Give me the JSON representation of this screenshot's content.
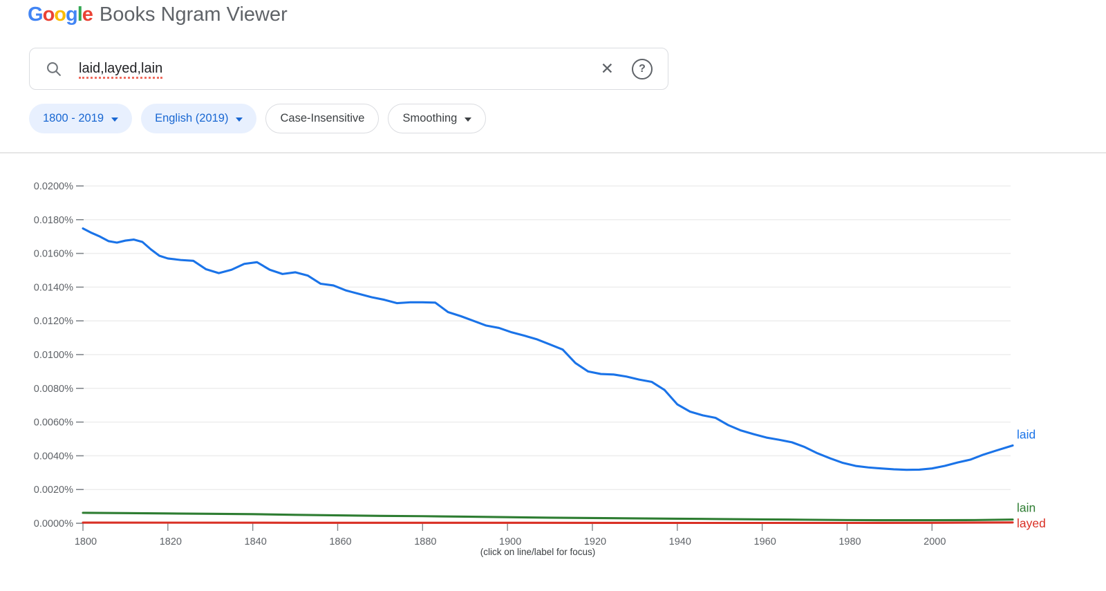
{
  "header": {
    "logo_word": [
      {
        "ch": "G",
        "color": "#4285F4"
      },
      {
        "ch": "o",
        "color": "#EA4335"
      },
      {
        "ch": "o",
        "color": "#FBBC05"
      },
      {
        "ch": "g",
        "color": "#4285F4"
      },
      {
        "ch": "l",
        "color": "#34A853"
      },
      {
        "ch": "e",
        "color": "#EA4335"
      }
    ],
    "title": "Books Ngram Viewer"
  },
  "search": {
    "query": "laid,layed,lain",
    "clear_glyph": "✕",
    "help_glyph": "?"
  },
  "filters": {
    "year_range": {
      "label": "1800 - 2019"
    },
    "corpus": {
      "label": "English (2019)"
    },
    "case_sensitivity": {
      "label": "Case-Insensitive"
    },
    "smoothing": {
      "label": "Smoothing"
    }
  },
  "colors": {
    "chip_filled_bg": "#e8f0fe",
    "chip_filled_text": "#1967d2",
    "grid": "#ededed",
    "tick": "#80868b",
    "axis_text": "#5f6368",
    "laid": "#1a73e8",
    "lain": "#2e7d32",
    "layed": "#d93025"
  },
  "chart_data": {
    "type": "line",
    "title": "",
    "xlabel": "",
    "ylabel": "",
    "xlim": [
      1800,
      2019
    ],
    "ylim": [
      0,
      0.02
    ],
    "grid": true,
    "legend_position": "end-of-line",
    "note": "(click on line/label for focus)",
    "x_ticks": [
      1800,
      1820,
      1840,
      1860,
      1880,
      1900,
      1920,
      1940,
      1960,
      1980,
      2000
    ],
    "y_ticks": [
      {
        "value": 0.0,
        "label": "0.0000%"
      },
      {
        "value": 0.002,
        "label": "0.0020%"
      },
      {
        "value": 0.004,
        "label": "0.0040%"
      },
      {
        "value": 0.006,
        "label": "0.0060%"
      },
      {
        "value": 0.008,
        "label": "0.0080%"
      },
      {
        "value": 0.01,
        "label": "0.0100%"
      },
      {
        "value": 0.012,
        "label": "0.0120%"
      },
      {
        "value": 0.014,
        "label": "0.0140%"
      },
      {
        "value": 0.016,
        "label": "0.0160%"
      },
      {
        "value": 0.018,
        "label": "0.0180%"
      },
      {
        "value": 0.02,
        "label": "0.0200%"
      }
    ],
    "series": [
      {
        "name": "laid",
        "color": "#1a73e8",
        "x": [
          1800,
          1802,
          1804,
          1806,
          1808,
          1810,
          1812,
          1814,
          1816,
          1818,
          1820,
          1823,
          1826,
          1829,
          1832,
          1835,
          1838,
          1841,
          1844,
          1847,
          1850,
          1853,
          1856,
          1859,
          1862,
          1865,
          1868,
          1871,
          1874,
          1877,
          1880,
          1883,
          1886,
          1889,
          1892,
          1895,
          1898,
          1901,
          1904,
          1907,
          1910,
          1913,
          1916,
          1919,
          1922,
          1925,
          1928,
          1931,
          1934,
          1937,
          1940,
          1943,
          1946,
          1949,
          1952,
          1955,
          1958,
          1961,
          1964,
          1967,
          1970,
          1973,
          1976,
          1979,
          1982,
          1985,
          1988,
          1991,
          1994,
          1997,
          2000,
          2003,
          2006,
          2009,
          2012,
          2015,
          2019
        ],
        "values": [
          0.01748,
          0.01722,
          0.017,
          0.01673,
          0.01664,
          0.01676,
          0.01682,
          0.01668,
          0.01624,
          0.01586,
          0.0157,
          0.01561,
          0.01556,
          0.01506,
          0.01483,
          0.01503,
          0.01538,
          0.01548,
          0.01503,
          0.01478,
          0.01488,
          0.01468,
          0.0142,
          0.0141,
          0.0138,
          0.0136,
          0.0134,
          0.01325,
          0.01305,
          0.0131,
          0.0131,
          0.01308,
          0.01252,
          0.01228,
          0.012,
          0.01172,
          0.01158,
          0.01132,
          0.01112,
          0.0109,
          0.0106,
          0.0103,
          0.0095,
          0.009,
          0.00885,
          0.00882,
          0.0087,
          0.00852,
          0.00838,
          0.0079,
          0.00705,
          0.00662,
          0.0064,
          0.00625,
          0.00582,
          0.0055,
          0.00528,
          0.00508,
          0.00495,
          0.0048,
          0.00452,
          0.00415,
          0.00385,
          0.00358,
          0.0034,
          0.00331,
          0.00325,
          0.0032,
          0.00317,
          0.00318,
          0.00325,
          0.0034,
          0.0036,
          0.00377,
          0.00406,
          0.0043,
          0.00461
        ]
      },
      {
        "name": "lain",
        "color": "#2e7d32",
        "x": [
          1800,
          1810,
          1820,
          1830,
          1840,
          1850,
          1860,
          1870,
          1880,
          1890,
          1900,
          1910,
          1920,
          1930,
          1940,
          1950,
          1960,
          1970,
          1980,
          1990,
          2000,
          2010,
          2019
        ],
        "values": [
          0.00062,
          0.0006,
          0.00058,
          0.00056,
          0.00054,
          0.0005,
          0.00047,
          0.00044,
          0.00042,
          0.00039,
          0.00036,
          0.00033,
          0.00031,
          0.00029,
          0.00027,
          0.00025,
          0.00023,
          0.00021,
          0.00019,
          0.00018,
          0.00018,
          0.00019,
          0.00022
        ]
      },
      {
        "name": "layed",
        "color": "#d93025",
        "x": [
          1800,
          1850,
          1900,
          1950,
          1980,
          2000,
          2019
        ],
        "values": [
          4e-05,
          3e-05,
          3e-05,
          2e-05,
          2e-05,
          3e-05,
          5e-05
        ]
      }
    ]
  }
}
